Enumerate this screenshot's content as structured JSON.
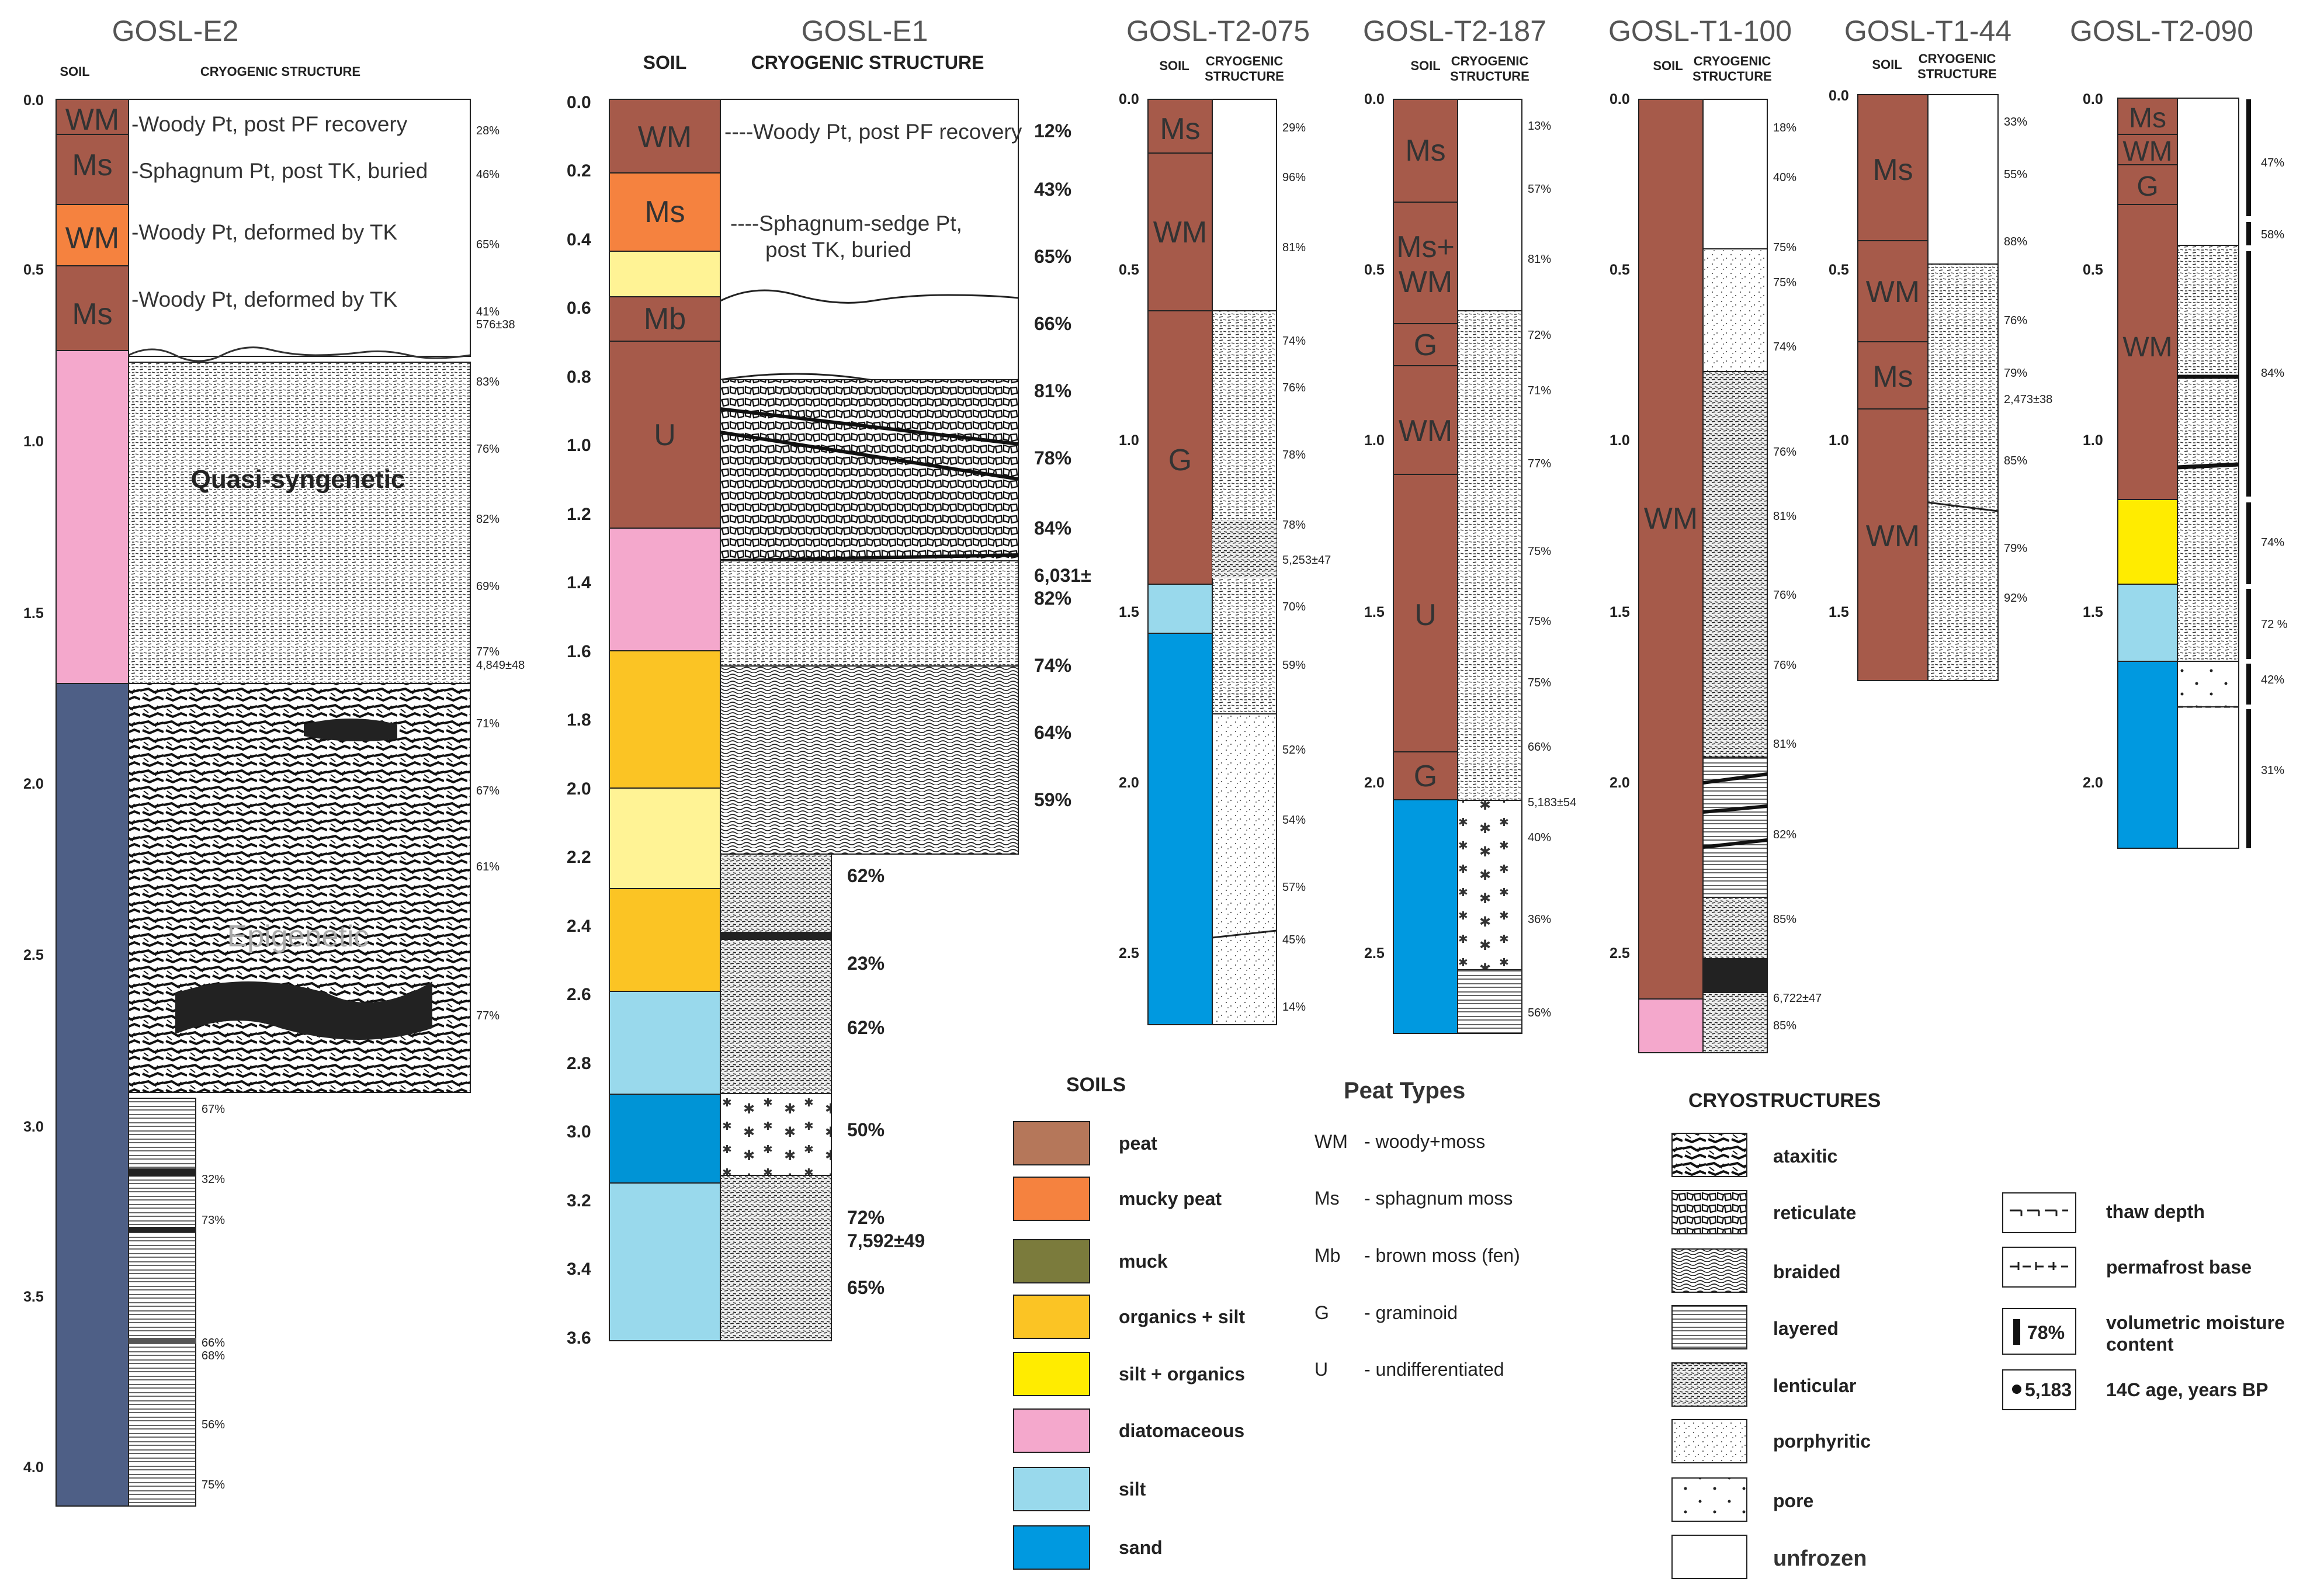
{
  "colors": {
    "peat": "#a65a4a",
    "mucky_peat": "#f5823f",
    "muck": "#7b7b3c",
    "organics_silt": "#fbc424",
    "silt_organics": "#ffec00",
    "diatomaceous": "#f4a8cc",
    "silt": "#99d9ec",
    "sand": "#0099e0",
    "peat_legend": "#b5775a",
    "epigenetic": "#4e5f86",
    "silt_light": "#fff395"
  },
  "columns": [
    {
      "id": "e2",
      "title": "GOSL-E2",
      "soil_label": "SOIL",
      "cryo_label": "CRYOGENIC  STRUCTURE",
      "ticks": [
        "0.0",
        "0.5",
        "1.0",
        "1.5",
        "2.0",
        "2.5",
        "3.0",
        "3.5",
        "4.0"
      ],
      "layers": [
        {
          "label": "WM"
        },
        {
          "label": "Ms"
        },
        {
          "label": "WM"
        },
        {
          "label": "Ms"
        },
        {
          "label": ""
        },
        {
          "label": ""
        }
      ],
      "annotations": [
        "-Woody Pt, post PF recovery",
        "-Sphagnum Pt, post TK, buried",
        "-Woody Pt, deformed by TK",
        "-Woody Pt, deformed by TK"
      ],
      "zone_labels": [
        "Quasi-syngenetic",
        "Epigenetic"
      ],
      "values": [
        "28%",
        "46%",
        "65%",
        "41%",
        "576±38",
        "83%",
        "76%",
        "82%",
        "69%",
        "77%",
        "4,849±48",
        "71%",
        "67%",
        "61%",
        "77%",
        "67%",
        "32%",
        "73%",
        "66%",
        "68%",
        "56%",
        "75%"
      ]
    },
    {
      "id": "e1",
      "title": "GOSL-E1",
      "soil_label": "SOIL",
      "cryo_label": "CRYOGENIC  STRUCTURE",
      "ticks": [
        "0.0",
        "0.2",
        "0.4",
        "0.6",
        "0.8",
        "1.0",
        "1.2",
        "1.4",
        "1.6",
        "1.8",
        "2.0",
        "2.2",
        "2.4",
        "2.6",
        "2.8",
        "3.0",
        "3.2",
        "3.4",
        "3.6"
      ],
      "layers": [
        {
          "label": "WM"
        },
        {
          "label": "Ms"
        },
        {
          "label": ""
        },
        {
          "label": "Mb"
        },
        {
          "label": "U"
        },
        {
          "label": ""
        },
        {
          "label": ""
        },
        {
          "label": ""
        },
        {
          "label": ""
        },
        {
          "label": ""
        },
        {
          "label": ""
        },
        {
          "label": ""
        }
      ],
      "annotations": [
        "----Woody Pt, post PF recovery",
        "----Sphagnum-sedge Pt,",
        "post TK, buried"
      ],
      "values": [
        "12%",
        "43%",
        "65%",
        "66%",
        "81%",
        "78%",
        "84%",
        "6,031±",
        "82%",
        "74%",
        "64%",
        "59%",
        "62%",
        "23%",
        "62%",
        "50%",
        "72%",
        "7,592±49",
        "65%"
      ]
    },
    {
      "id": "t2_075",
      "title": "GOSL-T2-075",
      "soil_label": "SOIL",
      "cryo_label": "CRYOGENIC",
      "cryo_label2": "STRUCTURE",
      "ticks": [
        "0.0",
        "0.5",
        "1.0",
        "1.5",
        "2.0",
        "2.5"
      ],
      "layers": [
        {
          "label": "Ms"
        },
        {
          "label": "WM"
        },
        {
          "label": "G"
        },
        {
          "label": ""
        },
        {
          "label": ""
        }
      ],
      "values": [
        "29%",
        "96%",
        "81%",
        "74%",
        "76%",
        "78%",
        "78%",
        "5,253±47",
        "70%",
        "59%",
        "52%",
        "54%",
        "57%",
        "45%",
        "14%"
      ]
    },
    {
      "id": "t2_187",
      "title": "GOSL-T2-187",
      "soil_label": "SOIL",
      "cryo_label": "CRYOGENIC",
      "cryo_label2": "STRUCTURE",
      "ticks": [
        "0.0",
        "0.5",
        "1.0",
        "1.5",
        "2.0",
        "2.5"
      ],
      "layers": [
        {
          "label": "Ms"
        },
        {
          "label": "Ms+"
        },
        {
          "label": "WM"
        },
        {
          "label": "G"
        },
        {
          "label": "WM"
        },
        {
          "label": "U"
        },
        {
          "label": "G"
        },
        {
          "label": ""
        }
      ],
      "values": [
        "13%",
        "57%",
        "81%",
        "72%",
        "71%",
        "77%",
        "75%",
        "75%",
        "75%",
        "66%",
        "5,183±54",
        "40%",
        "36%",
        "56%"
      ]
    },
    {
      "id": "t1_100",
      "title": "GOSL-T1-100",
      "soil_label": "SOIL",
      "cryo_label": "CRYOGENIC",
      "cryo_label2": "STRUCTURE",
      "ticks": [
        "0.0",
        "0.5",
        "1.0",
        "1.5",
        "2.0",
        "2.5"
      ],
      "layers": [
        {
          "label": "WM"
        },
        {
          "label": ""
        }
      ],
      "values": [
        "18%",
        "40%",
        "75%",
        "75%",
        "74%",
        "76%",
        "81%",
        "76%",
        "76%",
        "81%",
        "82%",
        "85%",
        "6,722±47",
        "85%"
      ]
    },
    {
      "id": "t1_44",
      "title": "GOSL-T1-44",
      "soil_label": "SOIL",
      "cryo_label": "CRYOGENIC",
      "cryo_label2": "STRUCTURE",
      "ticks": [
        "0.0",
        "0.5",
        "1.0",
        "1.5"
      ],
      "layers": [
        {
          "label": "Ms"
        },
        {
          "label": "WM"
        },
        {
          "label": "Ms"
        },
        {
          "label": "WM"
        }
      ],
      "values": [
        "33%",
        "55%",
        "88%",
        "76%",
        "79%",
        "2,473±38",
        "85%",
        "79%",
        "92%"
      ]
    },
    {
      "id": "t2_090",
      "title": "GOSL-T2-090",
      "ticks": [
        "0.0",
        "0.5",
        "1.0",
        "1.5",
        "2.0"
      ],
      "layers": [
        {
          "label": "Ms"
        },
        {
          "label": "WM"
        },
        {
          "label": "G"
        },
        {
          "label": "WM"
        },
        {
          "label": ""
        },
        {
          "label": ""
        },
        {
          "label": ""
        }
      ],
      "values": [
        "47%",
        "58%",
        "84%",
        "74%",
        "72 %",
        "42%",
        "31%"
      ]
    }
  ],
  "legend_soils": {
    "title": "SOILS",
    "items": [
      {
        "label": "peat",
        "color": "#b5775a"
      },
      {
        "label": "mucky peat",
        "color": "#f5823f"
      },
      {
        "label": "muck",
        "color": "#7b7b3c"
      },
      {
        "label": "organics + silt",
        "color": "#fbc424"
      },
      {
        "label": "silt + organics",
        "color": "#ffec00"
      },
      {
        "label": "diatomaceous",
        "color": "#f4a8cc"
      },
      {
        "label": "silt",
        "color": "#99d9ec"
      },
      {
        "label": "sand",
        "color": "#0099e0"
      }
    ]
  },
  "legend_peat": {
    "title": "Peat Types",
    "items": [
      {
        "code": "WM",
        "desc": "- woody+moss"
      },
      {
        "code": "Ms",
        "desc": " - sphagnum moss"
      },
      {
        "code": "Mb",
        "desc": "- brown moss (fen)"
      },
      {
        "code": "G",
        "desc": " - graminoid"
      },
      {
        "code": "U",
        "desc": " - undifferentiated"
      }
    ]
  },
  "legend_cryo": {
    "title": "CRYOSTRUCTURES",
    "items": [
      "ataxitic",
      "reticulate",
      "braided",
      "layered",
      "lenticular",
      "porphyritic",
      "pore",
      "unfrozen"
    ]
  },
  "legend_symbols": {
    "items": [
      {
        "label": "thaw depth"
      },
      {
        "label": "permafrost base"
      },
      {
        "label": "volumetric moisture",
        "label2": "content",
        "box_text": "78%"
      },
      {
        "label": "14C age, years BP",
        "box_text": "5,183"
      }
    ]
  }
}
